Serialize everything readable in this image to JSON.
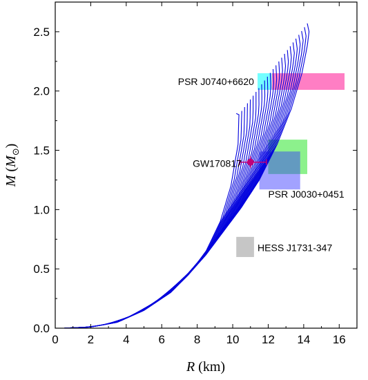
{
  "chart_data": {
    "type": "line",
    "xlabel": {
      "var": "R",
      "unit": " (km)"
    },
    "ylabel": {
      "var": "M",
      "open": " (",
      "sym": "M",
      "sub": "⊙",
      "close": ")"
    },
    "xlim": [
      0,
      17
    ],
    "ylim": [
      0,
      2.75
    ],
    "xticks": [
      "0",
      "2",
      "4",
      "6",
      "8",
      "10",
      "12",
      "14",
      "16"
    ],
    "yticks": [
      "0.0",
      "0.5",
      "1.0",
      "1.5",
      "2.0",
      "2.5"
    ],
    "grid": false,
    "curve_color": "#0000dd",
    "families": {
      "count": 25,
      "first": {
        "x": [
          0.5,
          2.0,
          3.5,
          5.0,
          6.5,
          7.5,
          8.5,
          9.3,
          9.9,
          10.3,
          10.35
        ],
        "y": [
          0.0,
          0.01,
          0.05,
          0.15,
          0.3,
          0.45,
          0.65,
          0.9,
          1.2,
          1.55,
          1.8
        ]
      },
      "last": {
        "x": [
          0.5,
          2.0,
          3.5,
          5.0,
          6.5,
          7.5,
          8.5,
          9.5,
          10.5,
          11.5,
          12.5,
          13.3,
          13.9,
          14.2,
          14.3,
          14.2
        ],
        "y": [
          0.0,
          0.01,
          0.05,
          0.15,
          0.3,
          0.45,
          0.62,
          0.82,
          1.02,
          1.25,
          1.55,
          1.85,
          2.15,
          2.38,
          2.5,
          2.57
        ]
      },
      "unstable_top_1": {
        "x": [
          10.35,
          10.2
        ],
        "y": [
          1.8,
          1.81
        ]
      }
    },
    "constraints": [
      {
        "name": "PSR J0740+6620",
        "x": [
          11.4,
          12.2
        ],
        "y": [
          2.01,
          2.15
        ],
        "color": "#00ffff",
        "opacity": 0.55
      },
      {
        "name": "PSR J0740+6620",
        "x": [
          12.2,
          16.3
        ],
        "y": [
          2.01,
          2.15
        ],
        "color": "#ff1493",
        "opacity": 0.55
      },
      {
        "name": "GW170817",
        "x": [
          12.0,
          14.2
        ],
        "y": [
          1.3,
          1.59
        ],
        "color": "#00e000",
        "opacity": 0.45
      },
      {
        "name": "PSR J0030+0451",
        "x": [
          11.5,
          13.8
        ],
        "y": [
          1.17,
          1.49
        ],
        "color": "#3030ff",
        "opacity": 0.45
      },
      {
        "name": "HESS J1731-347",
        "x": [
          10.2,
          11.2
        ],
        "y": [
          0.6,
          0.77
        ],
        "color": "#808080",
        "opacity": 0.45
      }
    ],
    "gw_point": {
      "name": "GW170817",
      "x": 11.0,
      "y": 1.4,
      "xerr": [
        10.4,
        11.9
      ],
      "yerr": [
        1.35,
        1.45
      ],
      "color": "#c0007a"
    },
    "annotations": [
      {
        "text": "PSR J0740+6620",
        "x": 11.2,
        "y": 2.08,
        "anchor": "end"
      },
      {
        "text": "GW170817",
        "x": 10.5,
        "y": 1.39,
        "anchor": "end"
      },
      {
        "text": "PSR J0030+0451",
        "x": 12.0,
        "y": 1.13,
        "anchor": "start"
      },
      {
        "text": "HESS J1731-347",
        "x": 11.4,
        "y": 0.68,
        "anchor": "start"
      }
    ]
  }
}
